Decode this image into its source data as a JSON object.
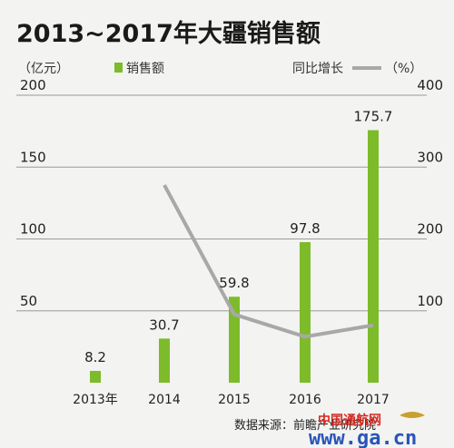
{
  "chart_data": {
    "type": "bar",
    "title": "2013~2017年大疆销售额",
    "left_unit": "（亿元）",
    "right_unit": "（%）",
    "legend": {
      "bar_label": "销售额",
      "line_label": "同比增长",
      "bar_color": "#7dbb2a",
      "line_color": "#a8a8a8"
    },
    "categories": [
      "2013年",
      "2014",
      "2015",
      "2016",
      "2017"
    ],
    "series": [
      {
        "name": "销售额",
        "type": "bar",
        "axis": "left",
        "values": [
          8.2,
          30.7,
          59.8,
          97.8,
          175.7
        ]
      },
      {
        "name": "同比增长",
        "type": "line",
        "axis": "right",
        "values": [
          null,
          275,
          95,
          64,
          80
        ]
      }
    ],
    "data_labels": [
      "8.2",
      "30.7",
      "59.8",
      "97.8",
      "175.7"
    ],
    "y_left": {
      "min": 0,
      "max": 200,
      "ticks": [
        50,
        100,
        150,
        200
      ]
    },
    "y_right": {
      "min": 0,
      "max": 400,
      "ticks": [
        100,
        200,
        300,
        400
      ]
    },
    "grid": true,
    "source": "数据来源：前瞻产业研究院"
  },
  "watermark": {
    "text_cn": "中国通航网",
    "url": "www.ga.cn"
  }
}
